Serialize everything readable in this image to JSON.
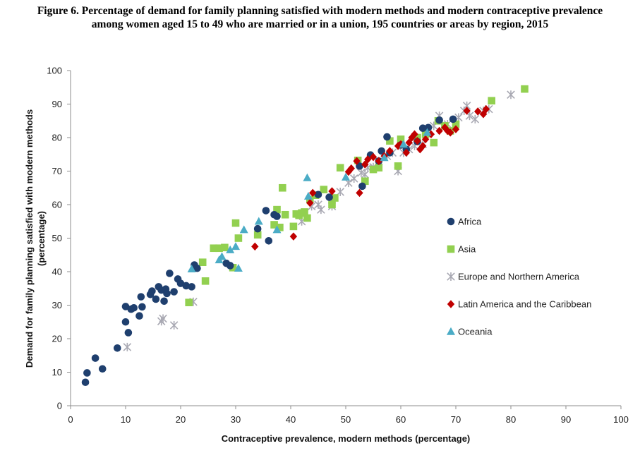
{
  "title_line1": "Figure 6. Percentage of demand for family planning satisfied with modern methods and modern contraceptive prevalence",
  "title_line2": "among women aged 15 to 49 who are married or in a union, 195 countries or areas by region, 2015",
  "chart_data": {
    "type": "scatter",
    "xlabel": "Contraceptive prevalence, modern methods (percentage)",
    "ylabel_line1": "Demand for family planning satisfied with modern methods",
    "ylabel_line2": "(percentage)",
    "xlim": [
      0,
      100
    ],
    "ylim": [
      0,
      100
    ],
    "x_ticks": [
      "0",
      "10",
      "20",
      "30",
      "40",
      "50",
      "60",
      "70",
      "80",
      "90",
      "100"
    ],
    "y_ticks": [
      "0",
      "10",
      "20",
      "30",
      "40",
      "50",
      "60",
      "70",
      "80",
      "90",
      "100"
    ],
    "grid": false,
    "legend_position": "right",
    "series": [
      {
        "name": "Africa",
        "marker": "circle",
        "color": "#1f3f6e",
        "points": [
          [
            2.7,
            7
          ],
          [
            3,
            9.8
          ],
          [
            4.5,
            14.2
          ],
          [
            5.8,
            11
          ],
          [
            8.5,
            17.2
          ],
          [
            10,
            29.6
          ],
          [
            10,
            25
          ],
          [
            10.5,
            21.8
          ],
          [
            11,
            28.8
          ],
          [
            11.5,
            29.2
          ],
          [
            12.5,
            26.8
          ],
          [
            12.8,
            32.5
          ],
          [
            13,
            29.5
          ],
          [
            14.5,
            33.2
          ],
          [
            14.8,
            34.2
          ],
          [
            15.5,
            31.8
          ],
          [
            16,
            35.5
          ],
          [
            16.5,
            34.5
          ],
          [
            17,
            31.2
          ],
          [
            17.3,
            34.8
          ],
          [
            17.5,
            33.5
          ],
          [
            18,
            39.5
          ],
          [
            18.8,
            34
          ],
          [
            19.5,
            37.8
          ],
          [
            20,
            36.5
          ],
          [
            21,
            35.8
          ],
          [
            22,
            35.5
          ],
          [
            22.5,
            42
          ],
          [
            23,
            41
          ],
          [
            28.3,
            42.5
          ],
          [
            29,
            41.8
          ],
          [
            34,
            52.8
          ],
          [
            35.5,
            58.2
          ],
          [
            36,
            49.2
          ],
          [
            37,
            57
          ],
          [
            37.5,
            56.5
          ],
          [
            45,
            63
          ],
          [
            47,
            62.2
          ],
          [
            52.5,
            71.5
          ],
          [
            53,
            65.5
          ],
          [
            54.5,
            74.8
          ],
          [
            56,
            73
          ],
          [
            56.5,
            76
          ],
          [
            57.5,
            80.2
          ],
          [
            58,
            75.5
          ],
          [
            60,
            77.8
          ],
          [
            61,
            76.5
          ],
          [
            63,
            78.8
          ],
          [
            64,
            82.8
          ],
          [
            65,
            83
          ],
          [
            67,
            85.2
          ],
          [
            69.5,
            85.5
          ]
        ]
      },
      {
        "name": "Asia",
        "marker": "square",
        "color": "#92d050",
        "points": [
          [
            21.5,
            30.8
          ],
          [
            24,
            42.8
          ],
          [
            24.5,
            37.2
          ],
          [
            26,
            47
          ],
          [
            27,
            47
          ],
          [
            28,
            47.2
          ],
          [
            29.5,
            41.2
          ],
          [
            30,
            54.5
          ],
          [
            30.5,
            50
          ],
          [
            34,
            51
          ],
          [
            37,
            54
          ],
          [
            37.5,
            58.5
          ],
          [
            38,
            53.2
          ],
          [
            38.5,
            65
          ],
          [
            39,
            57
          ],
          [
            40.5,
            53.5
          ],
          [
            41,
            57.2
          ],
          [
            41.5,
            56.8
          ],
          [
            42,
            57.5
          ],
          [
            42.5,
            57.8
          ],
          [
            43,
            56
          ],
          [
            43.5,
            61.5
          ],
          [
            44.5,
            62.8
          ],
          [
            46,
            64.5
          ],
          [
            47.5,
            60
          ],
          [
            48,
            62
          ],
          [
            49,
            71
          ],
          [
            52.2,
            73.2
          ],
          [
            53.5,
            67
          ],
          [
            55,
            70.5
          ],
          [
            56,
            71
          ],
          [
            58,
            79
          ],
          [
            59.5,
            71.5
          ],
          [
            60,
            79.5
          ],
          [
            63,
            80
          ],
          [
            64.5,
            81
          ],
          [
            66,
            78.5
          ],
          [
            66.8,
            85
          ],
          [
            68,
            83.5
          ],
          [
            69,
            82
          ],
          [
            70,
            84
          ],
          [
            76.5,
            91
          ],
          [
            82.5,
            94.5
          ]
        ]
      },
      {
        "name": "Europe and Northern America",
        "marker": "asterisk",
        "color": "#a9a9b3",
        "points": [
          [
            10.3,
            17.5
          ],
          [
            16.5,
            25.2
          ],
          [
            16.8,
            26
          ],
          [
            18.8,
            24
          ],
          [
            22.3,
            31
          ],
          [
            42,
            55
          ],
          [
            43.8,
            59.5
          ],
          [
            45,
            60
          ],
          [
            45.5,
            58.5
          ],
          [
            47.5,
            59.5
          ],
          [
            49,
            63.8
          ],
          [
            50.5,
            66.5
          ],
          [
            51.5,
            67.8
          ],
          [
            52.8,
            69.5
          ],
          [
            53.5,
            69
          ],
          [
            54,
            71
          ],
          [
            55,
            71.2
          ],
          [
            56,
            73
          ],
          [
            57.5,
            74.5
          ],
          [
            58.5,
            75.5
          ],
          [
            59.5,
            70
          ],
          [
            60.5,
            75.5
          ],
          [
            61.5,
            76.5
          ],
          [
            62.5,
            77.5
          ],
          [
            64,
            78
          ],
          [
            65,
            82.5
          ],
          [
            66,
            83.5
          ],
          [
            67,
            86.5
          ],
          [
            68.5,
            84
          ],
          [
            70.5,
            86
          ],
          [
            71.5,
            88
          ],
          [
            72,
            89.5
          ],
          [
            72.5,
            86.5
          ],
          [
            73.5,
            85.5
          ],
          [
            75,
            88
          ],
          [
            76,
            88.5
          ],
          [
            80,
            92.8
          ]
        ]
      },
      {
        "name": "Latin America and the Caribbean",
        "marker": "diamond",
        "color": "#c00000",
        "points": [
          [
            33.5,
            47.5
          ],
          [
            40.5,
            50.5
          ],
          [
            43.5,
            60.5
          ],
          [
            44,
            63.5
          ],
          [
            47.5,
            64
          ],
          [
            50.5,
            69.8
          ],
          [
            51,
            70.8
          ],
          [
            52,
            73
          ],
          [
            52.5,
            63.5
          ],
          [
            53.5,
            72
          ],
          [
            54,
            73.5
          ],
          [
            55,
            74.2
          ],
          [
            56,
            73
          ],
          [
            57,
            74.5
          ],
          [
            58,
            76
          ],
          [
            59.5,
            77.5
          ],
          [
            60,
            78
          ],
          [
            61,
            75.5
          ],
          [
            61.5,
            78.5
          ],
          [
            62,
            80
          ],
          [
            62.5,
            81
          ],
          [
            63,
            79
          ],
          [
            63.5,
            76.5
          ],
          [
            64,
            77.5
          ],
          [
            64.5,
            79.5
          ],
          [
            65.5,
            81
          ],
          [
            67,
            82
          ],
          [
            68,
            83
          ],
          [
            68.5,
            82
          ],
          [
            69,
            81.5
          ],
          [
            70,
            82.5
          ],
          [
            72,
            88
          ],
          [
            74,
            87.8
          ],
          [
            75,
            87
          ],
          [
            75.5,
            88.5
          ]
        ]
      },
      {
        "name": "Oceania",
        "marker": "triangle",
        "color": "#4bacc6",
        "points": [
          [
            22,
            40.8
          ],
          [
            27,
            43.5
          ],
          [
            27.5,
            44.5
          ],
          [
            29,
            46.5
          ],
          [
            30,
            47.5
          ],
          [
            30.5,
            41
          ],
          [
            31.5,
            52.5
          ],
          [
            34.2,
            55
          ],
          [
            37.5,
            52.5
          ],
          [
            43,
            68
          ],
          [
            43.2,
            62.5
          ],
          [
            50,
            68.2
          ],
          [
            57,
            74
          ],
          [
            60.5,
            78
          ],
          [
            64.8,
            81.5
          ]
        ]
      }
    ]
  }
}
